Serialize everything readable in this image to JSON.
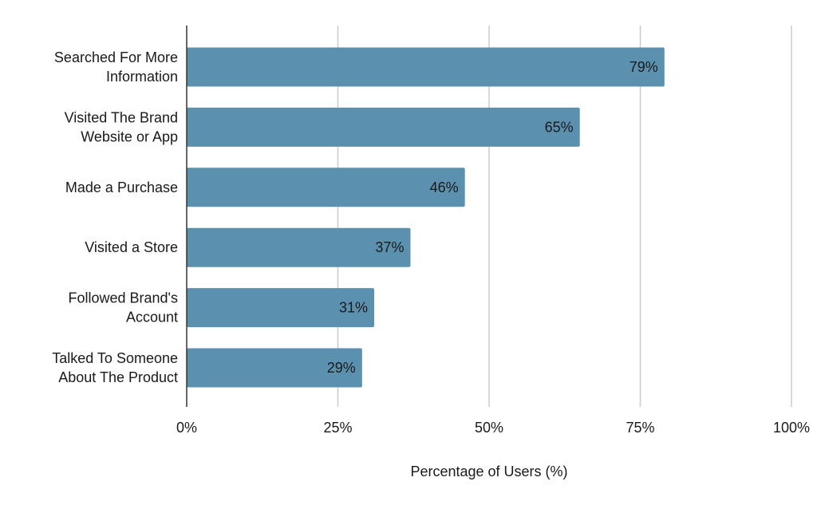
{
  "chart_data": {
    "type": "bar",
    "orientation": "horizontal",
    "title": "",
    "xlabel": "Percentage of Users (%)",
    "ylabel": "",
    "categories": [
      [
        "Searched For More",
        "Information"
      ],
      [
        "Visited The Brand",
        "Website or App"
      ],
      [
        "Made a Purchase"
      ],
      [
        "Visited a Store"
      ],
      [
        "Followed Brand's",
        "Account"
      ],
      [
        "Talked To Someone",
        "About The Product"
      ]
    ],
    "values": [
      79,
      65,
      46,
      37,
      31,
      29
    ],
    "data_labels": [
      "79%",
      "65%",
      "46%",
      "37%",
      "31%",
      "29%"
    ],
    "xlim": [
      0,
      100
    ],
    "xticks": [
      0,
      25,
      50,
      75,
      100
    ],
    "xtick_labels": [
      "0%",
      "25%",
      "50%",
      "75%",
      "100%"
    ],
    "grid": "vertical",
    "legend": "none",
    "colors": {
      "bar": "#5b91ae",
      "grid": "#cccccc",
      "axis": "#333333"
    }
  }
}
